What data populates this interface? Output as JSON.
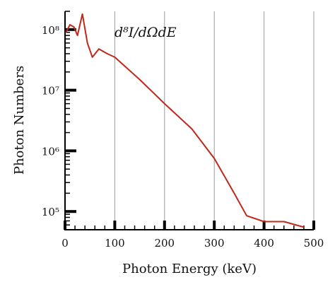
{
  "chart_data": {
    "type": "line",
    "title": "",
    "xlabel": "Photon Energy (keV)",
    "ylabel": "Photon Numbers",
    "annotation": "d⁸I/dΩdE",
    "x_scale": "linear",
    "y_scale": "log",
    "xlim": [
      0,
      500
    ],
    "ylim": [
      50000,
      200000000
    ],
    "x_ticks": [
      0,
      100,
      200,
      300,
      400,
      500
    ],
    "x_tick_labels": [
      "0",
      "100",
      "200",
      "300",
      "400",
      "500"
    ],
    "y_ticks": [
      100000,
      1000000,
      10000000,
      100000000
    ],
    "y_tick_labels": [
      "10⁵",
      "10⁶",
      "10⁷",
      "10⁸"
    ],
    "grid": "vertical-lines-at-major-x-ticks",
    "series": [
      {
        "name": "",
        "color": "#c0281c",
        "x": [
          2,
          10,
          18,
          25,
          35,
          45,
          55,
          68,
          85,
          100,
          150,
          200,
          255,
          300,
          340,
          365,
          400,
          440,
          480
        ],
        "y": [
          90000000,
          120000000,
          110000000,
          80000000,
          180000000,
          60000000,
          35000000,
          48000000,
          40000000,
          35000000,
          15000000,
          6000000,
          2300000,
          750000,
          200000,
          85000,
          68000,
          68000,
          55000
        ]
      }
    ]
  }
}
